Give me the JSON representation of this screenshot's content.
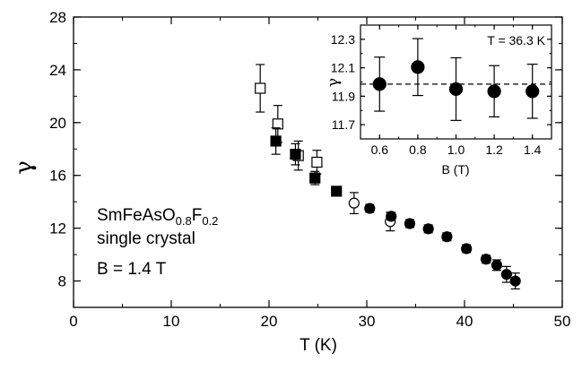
{
  "chart_data": [
    {
      "type": "scatter",
      "xlabel": "T (K)",
      "ylabel": "γ",
      "xlim": [
        0,
        50
      ],
      "ylim": [
        6,
        28
      ],
      "xticks": [
        "0",
        "10",
        "20",
        "30",
        "40",
        "50"
      ],
      "yticks": [
        "8",
        "12",
        "16",
        "20",
        "24",
        "28"
      ],
      "annotation": {
        "formula_base": "SmFeAsO",
        "formula_sub1": "0.8",
        "formula_mid": "F",
        "formula_sub2": "0.2",
        "line2": "single crystal",
        "line3": "B = 1.4 T"
      },
      "series": [
        {
          "marker": "open-square",
          "points": [
            {
              "x": 19.1,
              "y": 22.6,
              "err": 1.8
            },
            {
              "x": 20.9,
              "y": 19.9,
              "err": 1.4
            },
            {
              "x": 23.0,
              "y": 17.5,
              "err": 1.1
            },
            {
              "x": 24.9,
              "y": 17.0,
              "err": 0.9
            }
          ]
        },
        {
          "marker": "filled-square",
          "points": [
            {
              "x": 20.7,
              "y": 18.6,
              "err": 1.0
            },
            {
              "x": 22.7,
              "y": 17.6,
              "err": 0.8
            },
            {
              "x": 24.7,
              "y": 15.8,
              "err": 0.5
            },
            {
              "x": 26.9,
              "y": 14.8,
              "err": 0.3
            }
          ]
        },
        {
          "marker": "open-circle",
          "points": [
            {
              "x": 28.7,
              "y": 13.9,
              "err": 0.8
            },
            {
              "x": 32.4,
              "y": 12.5,
              "err": 0.7
            }
          ]
        },
        {
          "marker": "filled-circle",
          "points": [
            {
              "x": 30.3,
              "y": 13.5,
              "err": 0.3
            },
            {
              "x": 32.5,
              "y": 12.9,
              "err": 0.3
            },
            {
              "x": 34.4,
              "y": 12.35,
              "err": 0.3
            },
            {
              "x": 36.3,
              "y": 11.95,
              "err": 0.3
            },
            {
              "x": 38.2,
              "y": 11.35,
              "err": 0.3
            },
            {
              "x": 40.2,
              "y": 10.45,
              "err": 0.3
            },
            {
              "x": 42.2,
              "y": 9.65,
              "err": 0.3
            },
            {
              "x": 43.3,
              "y": 9.2,
              "err": 0.4
            },
            {
              "x": 44.3,
              "y": 8.5,
              "err": 0.6
            },
            {
              "x": 45.2,
              "y": 8.0,
              "err": 0.6
            }
          ]
        }
      ]
    },
    {
      "type": "scatter",
      "xlabel": "B (T)",
      "ylabel": "γ",
      "xlim": [
        0.5,
        1.5
      ],
      "ylim": [
        11.6,
        12.4
      ],
      "xticks": [
        "0.6",
        "0.8",
        "1.0",
        "1.2",
        "1.4"
      ],
      "yticks": [
        "11.7",
        "11.9",
        "12.1",
        "12.3"
      ],
      "label": "T = 36.3 K",
      "reference_line": {
        "y": 11.985,
        "style": "dashed"
      },
      "series": [
        {
          "marker": "filled-circle",
          "points": [
            {
              "x": 0.6,
              "y": 11.985,
              "err": 0.19
            },
            {
              "x": 0.8,
              "y": 12.105,
              "err": 0.2
            },
            {
              "x": 1.0,
              "y": 11.95,
              "err": 0.22
            },
            {
              "x": 1.2,
              "y": 11.935,
              "err": 0.18
            },
            {
              "x": 1.4,
              "y": 11.935,
              "err": 0.19
            }
          ]
        }
      ]
    }
  ]
}
